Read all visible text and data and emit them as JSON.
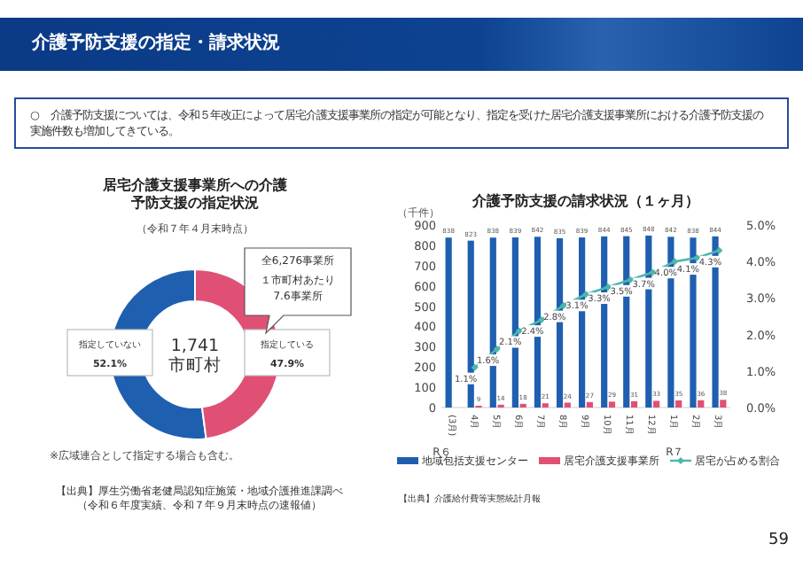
{
  "chart_data": [
    {
      "type": "other",
      "title": "介護予防支援の指定・請求状況",
      "annotations": [
        "○　介護予防支援については、令和５年改正によって居宅介護支援事業所の指定が可能となり、指定を受けた居宅介護支援事業所における介護予防支援の実施件数も増加してきている。",
        "59"
      ]
    },
    {
      "type": "donut",
      "title": "居宅介護支援事業所への介護予防支援の指定状況",
      "subtitle": "（令和７年４月末時点）",
      "categories": [
        "指定していない",
        "指定している"
      ],
      "values": [
        52.1,
        47.9
      ],
      "value_labels": [
        "52.1%",
        "47.9%"
      ],
      "colors": [
        "#1f5fb0",
        "#e05075"
      ],
      "annotations": [
        "1,741\n市町村",
        "全6,276事業所",
        "１市町村あたり7.6事業所",
        "※広域連合として指定する場合も含む。",
        "【出典】厚生労働省老健局認知症施策・地域介護推進課調べ",
        "（令和６年度実績、令和７年９月末時点の速報値）"
      ]
    },
    {
      "type": "bar",
      "title": "介護予防支援の請求状況（１ヶ月）",
      "ylabel": "（千件）",
      "categories": [
        "(3月)",
        "4月",
        "5月",
        "6月",
        "7月",
        "8月",
        "9月",
        "10月",
        "11月",
        "12月",
        "1月",
        "2月",
        "3月"
      ],
      "series": [
        {
          "name": "地域包括支援センター",
          "color": "#1f5fb0",
          "values": [
            838,
            823,
            838,
            839,
            842,
            835,
            839,
            844,
            845,
            848,
            842,
            838,
            844
          ],
          "value_labels": [
            "838",
            "823",
            "838",
            "839",
            "842",
            "835",
            "839",
            "844",
            "845",
            "848",
            "842",
            "838",
            "844"
          ]
        },
        {
          "name": "居宅介護支援事業所",
          "color": "#e05075",
          "values": [
            null,
            9,
            14,
            18,
            21,
            24,
            27,
            29,
            31,
            33,
            35,
            36,
            38
          ],
          "value_labels": [
            null,
            "9",
            "14",
            "18",
            "21",
            "24",
            "27",
            "29",
            "31",
            "33",
            "35",
            "36",
            "38"
          ]
        },
        {
          "name": "居宅が占める割合",
          "type": "line",
          "axis": "y2",
          "color": "#4db6ac",
          "marker": "diamond",
          "values": [
            null,
            1.1,
            1.6,
            2.1,
            2.4,
            2.8,
            3.1,
            3.3,
            3.5,
            3.7,
            4.0,
            4.1,
            4.3
          ],
          "value_labels": [
            null,
            "1.1%",
            "1.6%",
            "2.1%",
            "2.4%",
            "2.8%",
            "3.1%",
            "3.3%",
            "3.5%",
            "3.7%",
            "4.0%",
            "4.1%",
            "4.3%"
          ]
        }
      ],
      "ylim": [
        0,
        900
      ],
      "yticks": [
        0,
        100,
        200,
        300,
        400,
        500,
        600,
        700,
        800,
        900
      ],
      "y2lim": [
        0,
        5
      ],
      "y2ticks": [
        {
          "value": 0,
          "label": "0.0%"
        },
        {
          "value": 1,
          "label": "1.0%"
        },
        {
          "value": 2,
          "label": "2.0%"
        },
        {
          "value": 3,
          "label": "3.0%"
        },
        {
          "value": 4,
          "label": "4.0%"
        },
        {
          "value": 5,
          "label": "5.0%"
        }
      ],
      "legend": "bottom",
      "annotations": [
        "R６",
        "R７",
        "【出典】介護給付費等実態統計月報"
      ]
    }
  ]
}
